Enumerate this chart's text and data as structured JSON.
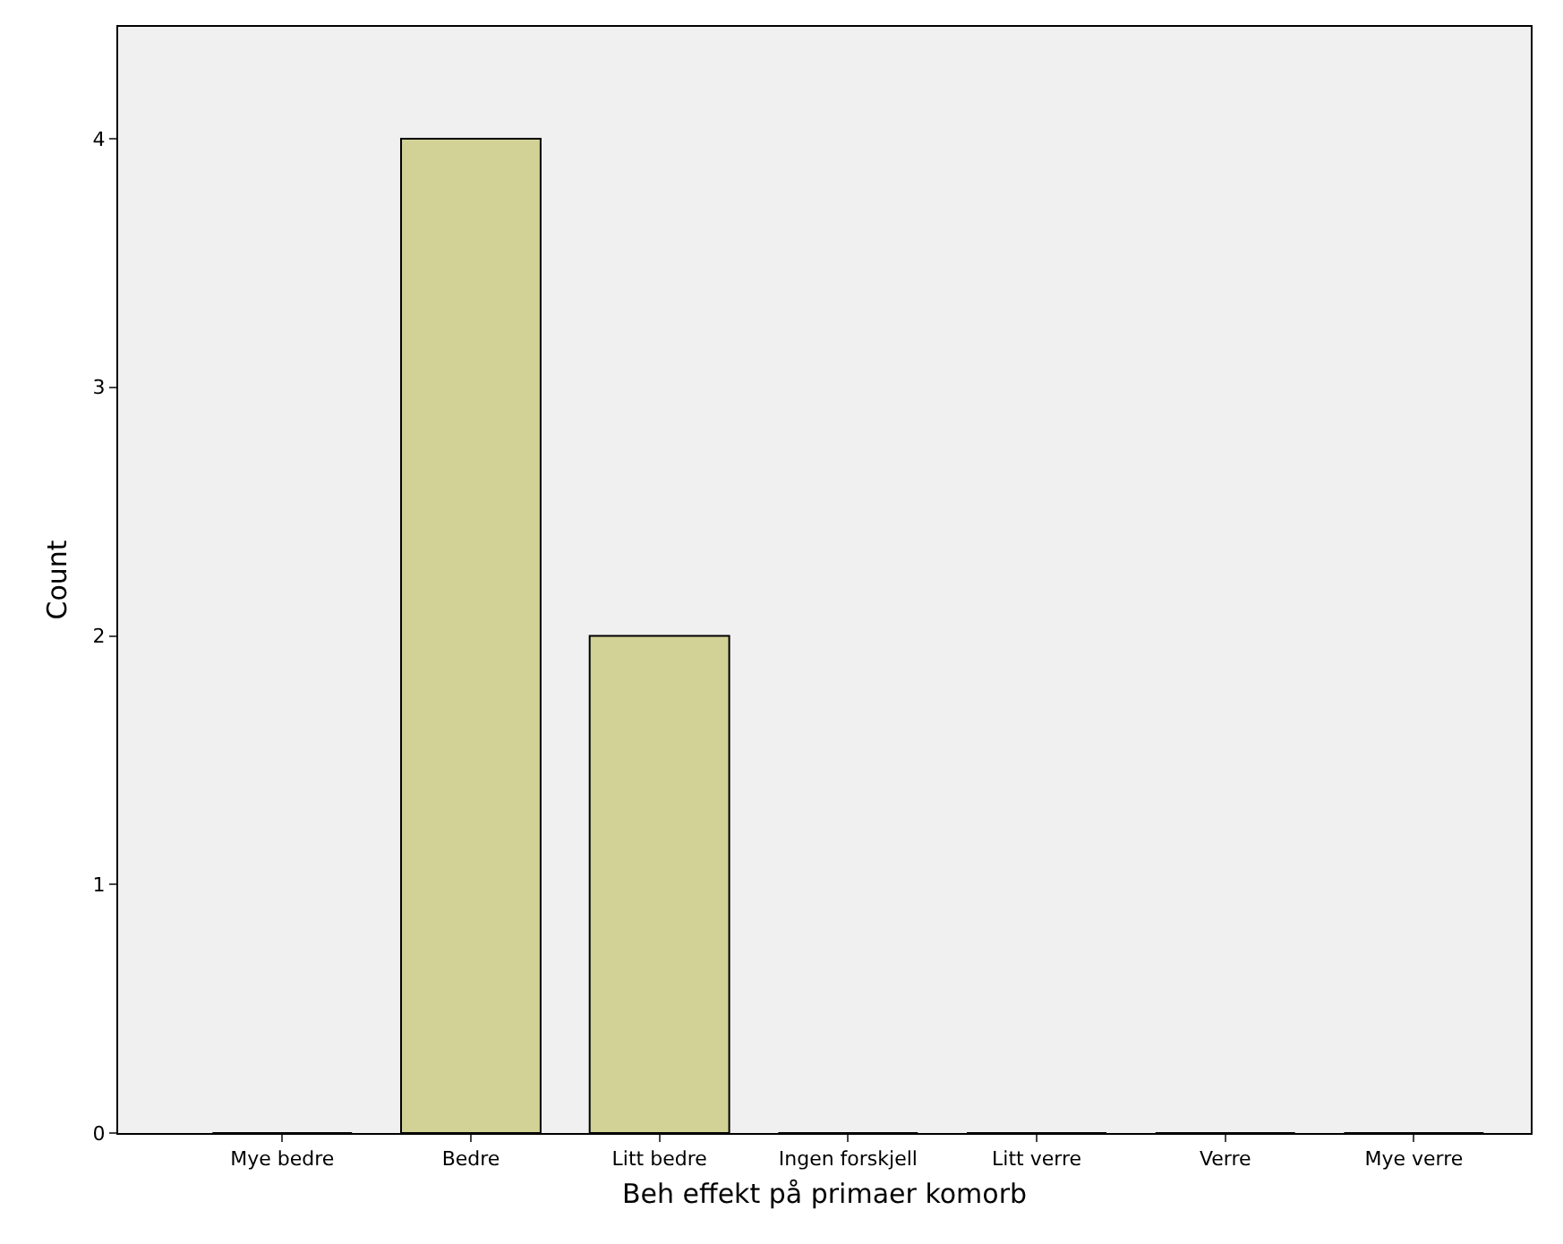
{
  "chart_data": {
    "type": "bar",
    "xlabel": "Beh effekt på primaer komorb",
    "ylabel": "Count",
    "categories": [
      "Mye bedre",
      "Bedre",
      "Litt bedre",
      "Ingen forskjell",
      "Litt verre",
      "Verre",
      "Mye verre"
    ],
    "values": [
      0,
      4,
      2,
      0,
      0,
      0,
      0
    ],
    "color": "#d2d196",
    "ylim": [
      0,
      4.45
    ],
    "yticks": [
      0,
      1,
      2,
      3,
      4
    ],
    "grid": false,
    "legend": false
  }
}
